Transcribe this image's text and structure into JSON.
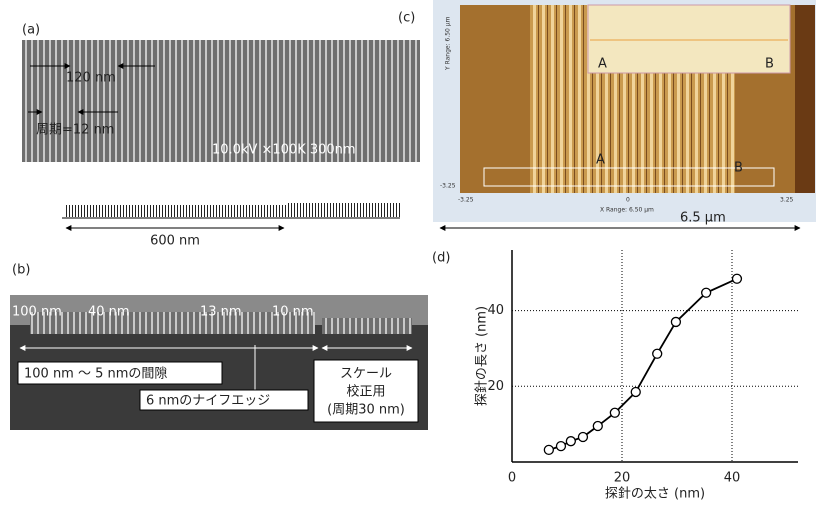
{
  "figure": {
    "panel_a": {
      "label": "(a)",
      "width_label": "120 nm",
      "period_label": "周期=12 nm",
      "sem_info": "10.0kV ×100K 300nm",
      "ruler_label": "600 nm"
    },
    "panel_b": {
      "label": "(b)",
      "gaps": [
        "100 nm",
        "40 nm",
        "13 nm",
        "10 nm"
      ],
      "gap_range": "100 nm ～ 5 nmの間隙",
      "knife_edge": "6 nmのナイフエッジ",
      "scale_lines": [
        "スケール",
        "校正用",
        "(周期30 nm)"
      ]
    },
    "panel_c": {
      "label": "(c)",
      "inset_a": "A",
      "inset_b": "B",
      "marker_a": "A",
      "marker_b": "B",
      "x_min": "-3.25",
      "x_mid": "0",
      "x_max": "3.25",
      "x_range": "X Range: 6.50 µm",
      "y_range": "Y Range: 6.50 µm",
      "y_min": "-3.25",
      "scan_width": "6.5 µm"
    },
    "panel_d": {
      "label": "(d)"
    }
  },
  "chart_data": {
    "type": "line",
    "x_label": "探針の太さ (nm)",
    "y_label": "探針の長さ (nm)",
    "color": "#000000",
    "x": [
      6.7,
      8.9,
      10.7,
      12.9,
      15.6,
      18.7,
      22.5,
      26.4,
      29.8,
      35.3,
      40.9
    ],
    "values": [
      3.2,
      4.2,
      5.5,
      6.6,
      9.5,
      13.0,
      18.5,
      28.6,
      37.0,
      44.7,
      48.4
    ],
    "xlim": [
      0,
      52
    ],
    "ylim": [
      0,
      56
    ],
    "xticks": [
      0,
      20,
      40
    ],
    "yticks": [
      20,
      40
    ],
    "grid": true
  }
}
